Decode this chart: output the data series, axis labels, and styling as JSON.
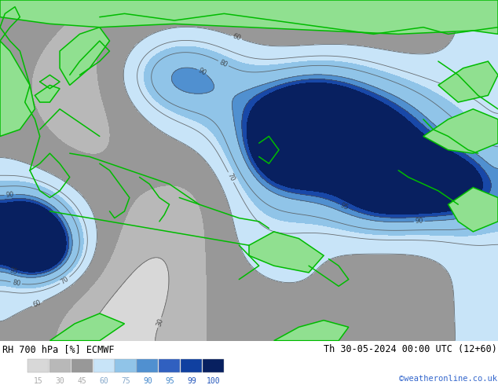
{
  "title_left": "RH 700 hPa [%] ECMWF",
  "title_right": "Th 30-05-2024 00:00 UTC (12+60)",
  "credit": "©weatheronline.co.uk",
  "legend_labels": [
    "15",
    "30",
    "45",
    "60",
    "75",
    "90",
    "95",
    "99",
    "100"
  ],
  "color_levels": [
    0,
    15,
    30,
    45,
    60,
    75,
    90,
    95,
    99,
    101
  ],
  "colors_rh": [
    "#f5f5f5",
    "#d8d8d8",
    "#b8b8b8",
    "#989898",
    "#c8e4f8",
    "#90c4e8",
    "#5090d0",
    "#1848a8",
    "#0820608"
  ],
  "legend_colors": [
    "#d8d8d8",
    "#b8b8b8",
    "#989898",
    "#c8e4f8",
    "#90c4e8",
    "#5090d0",
    "#3060c0",
    "#1040a0",
    "#082060"
  ],
  "legend_text_colors": [
    "#aaaaaa",
    "#aaaaaa",
    "#aaaaaa",
    "#88aacc",
    "#88aacc",
    "#4488cc",
    "#4488cc",
    "#2255bb",
    "#2255bb"
  ],
  "background_color": "#ffffff",
  "figsize": [
    6.34,
    4.9
  ],
  "dpi": 100,
  "map_facecolor": "#e0e0e0"
}
